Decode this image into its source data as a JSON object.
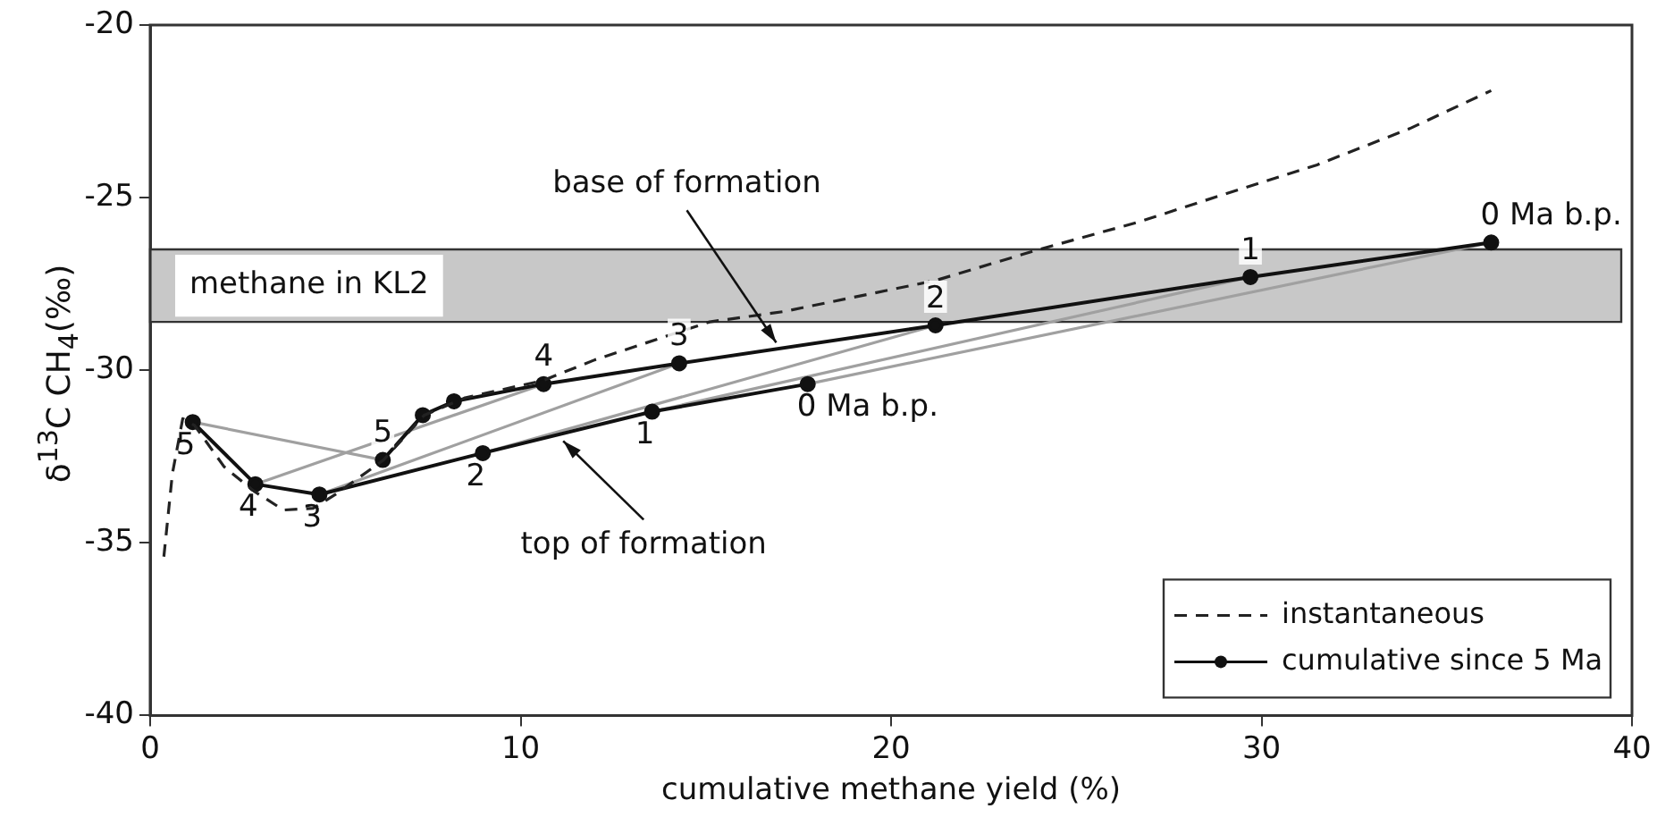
{
  "chart_data": {
    "type": "line",
    "xlabel": "cumulative methane yield (%)",
    "ylabel": "δ$^{13}$C CH$_{4}$(‰)",
    "xlim": [
      0,
      40
    ],
    "xticks": [
      0,
      10,
      20,
      30,
      40
    ],
    "ylim": [
      -40,
      -20
    ],
    "yticks": [
      -40,
      -35,
      -30,
      -25,
      -20
    ],
    "grid": false,
    "legend": "bottom right",
    "series": [
      {
        "name": "instantaneous",
        "color": "#222222",
        "line_style": "dashed",
        "marker": "none",
        "x": [
          0.37,
          0.6,
          0.88,
          1.2,
          2,
          2.8,
          3.6,
          4.4,
          5,
          6.3,
          7.4,
          8.5,
          10.6,
          12,
          15.1,
          17.1,
          21.2,
          24,
          26.7,
          29,
          31.5,
          34,
          36.2
        ],
        "values": [
          -35.4,
          -33,
          -31.4,
          -31.6,
          -32.8,
          -33.5,
          -34.05,
          -34,
          -33.6,
          -32.6,
          -31.3,
          -30.8,
          -30.3,
          -29.7,
          -28.6,
          -28.3,
          -27.4,
          -26.5,
          -25.7,
          -24.9,
          -24.05,
          -23,
          -21.9
        ]
      },
      {
        "name": "cumulative since 5 Ma",
        "color": "#111111",
        "line_style": "solid",
        "marker": "circle",
        "x": [
          1.15,
          2.84,
          4.57,
          8.98,
          13.55,
          17.75
        ],
        "values": [
          -31.5,
          -33.3,
          -33.6,
          -32.4,
          -31.2,
          -30.4
        ]
      },
      {
        "color": "#111111",
        "line_style": "solid",
        "marker": "circle",
        "x": [
          6.28,
          7.36,
          8.2,
          10.62,
          14.28,
          21.2,
          29.7,
          36.2
        ],
        "values": [
          -32.6,
          -31.3,
          -30.9,
          -30.4,
          -29.8,
          -28.7,
          -27.3,
          -26.3
        ]
      },
      {
        "color": "#a0a0a0",
        "line_style": "solid",
        "marker": "none",
        "x": [
          1.15,
          6.28
        ],
        "values": [
          -31.5,
          -32.6
        ]
      },
      {
        "color": "#a0a0a0",
        "line_style": "solid",
        "marker": "none",
        "x": [
          2.84,
          10.62
        ],
        "values": [
          -33.3,
          -30.4
        ]
      },
      {
        "color": "#a0a0a0",
        "line_style": "solid",
        "marker": "none",
        "x": [
          4.57,
          14.28
        ],
        "values": [
          -33.6,
          -29.8
        ]
      },
      {
        "color": "#a0a0a0",
        "line_style": "solid",
        "marker": "none",
        "x": [
          8.98,
          21.2
        ],
        "values": [
          -32.4,
          -28.7
        ]
      },
      {
        "color": "#a0a0a0",
        "line_style": "solid",
        "marker": "none",
        "x": [
          13.55,
          29.7
        ],
        "values": [
          -31.2,
          -27.3
        ]
      },
      {
        "color": "#a0a0a0",
        "line_style": "solid",
        "marker": "none",
        "x": [
          17.75,
          36.2
        ],
        "values": [
          -30.4,
          -26.3
        ]
      }
    ],
    "bands": [
      {
        "axis": "y",
        "from": -28.6,
        "to": -26.5,
        "label": "methane in KL2",
        "color": "#c8c8c8"
      }
    ],
    "annotations": [
      {
        "text": "5",
        "x": 1.15,
        "y": -31.5
      },
      {
        "text": "4",
        "x": 2.84,
        "y": -33.3
      },
      {
        "text": "3",
        "x": 4.57,
        "y": -33.6
      },
      {
        "text": "2",
        "x": 8.98,
        "y": -32.4
      },
      {
        "text": "1",
        "x": 13.55,
        "y": -31.2
      },
      {
        "text": "0 Ma b.p.",
        "x": 17.75,
        "y": -30.4
      },
      {
        "text": "5",
        "x": 6.28,
        "y": -32.6
      },
      {
        "text": "4",
        "x": 10.62,
        "y": -30.4
      },
      {
        "text": "3",
        "x": 14.28,
        "y": -29.8
      },
      {
        "text": "2",
        "x": 21.2,
        "y": -28.7
      },
      {
        "text": "1",
        "x": 29.7,
        "y": -27.3
      },
      {
        "text": "0 Ma b.p.",
        "x": 36.2,
        "y": -26.3
      },
      {
        "text": "base of formation",
        "x": 16.9,
        "y": -29.2
      },
      {
        "text": "top of formation",
        "x": 11.15,
        "y": -32.05
      }
    ]
  }
}
